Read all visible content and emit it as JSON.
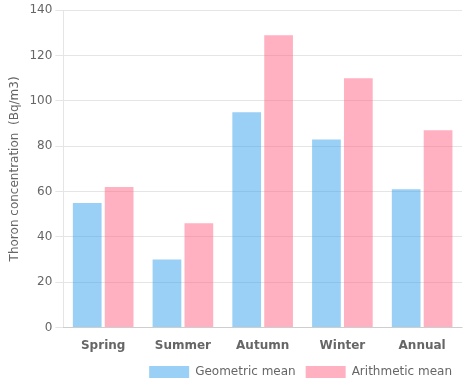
{
  "chart_data": {
    "type": "bar",
    "categories": [
      "Spring",
      "Summer",
      "Autumn",
      "Winter",
      "Annual"
    ],
    "series": [
      {
        "name": "Geometric mean",
        "values": [
          55,
          30,
          95,
          83,
          61
        ]
      },
      {
        "name": "Arithmetic mean",
        "values": [
          62,
          46,
          129,
          110,
          87
        ]
      }
    ],
    "ylabel": "Thoron concentration  (Bq/m3)",
    "ylim": [
      0,
      140
    ],
    "yticks": [
      0,
      20,
      40,
      60,
      80,
      100,
      120,
      140
    ],
    "grid": true,
    "legend": "bottom right"
  }
}
